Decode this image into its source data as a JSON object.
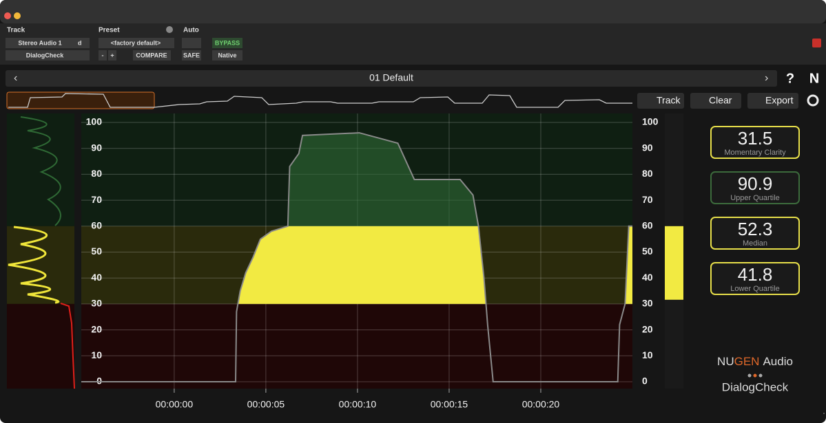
{
  "toolbar": {
    "track_label": "Track",
    "preset_label": "Preset",
    "auto_label": "Auto",
    "track_name": "Stereo Audio 1",
    "track_mode": "d",
    "preset_name": "<factory default>",
    "bypass": "BYPASS",
    "plugin_name": "DialogCheck",
    "minus": "-",
    "plus": "+",
    "compare": "COMPARE",
    "safe": "SAFE",
    "native": "Native"
  },
  "nav": {
    "preset": "01 Default",
    "help": "?",
    "logo": "N"
  },
  "buttons": {
    "track": "Track",
    "clear": "Clear",
    "export": "Export"
  },
  "readouts": [
    {
      "value": "31.5",
      "label": "Momentary Clarity",
      "color": "#e8e04a"
    },
    {
      "value": "90.9",
      "label": "Upper Quartile",
      "color": "#3c6b3c"
    },
    {
      "value": "52.3",
      "label": "Median",
      "color": "#e8e04a"
    },
    {
      "value": "41.8",
      "label": "Lower Quartile",
      "color": "#e8e04a"
    }
  ],
  "brand": {
    "nu": "NU",
    "gen": "GEN",
    "audio": "Audio",
    "product": "DialogCheck"
  },
  "chart_data": {
    "type": "line",
    "ylim": [
      0,
      100
    ],
    "yticks": [
      0,
      10,
      20,
      30,
      40,
      50,
      60,
      70,
      80,
      90,
      100
    ],
    "xlim": [
      -5.07,
      25
    ],
    "xticks": [
      {
        "value": 0,
        "label": "00:00:00"
      },
      {
        "value": 5,
        "label": "00:00:05"
      },
      {
        "value": 10,
        "label": "00:00:10"
      },
      {
        "value": 15,
        "label": "00:00:15"
      },
      {
        "value": 20,
        "label": "00:00:20"
      }
    ],
    "grid": true,
    "zones": [
      {
        "from": 60,
        "to": 100,
        "color": "#0f1f12"
      },
      {
        "from": 30,
        "to": 60,
        "color": "#2a2a0c"
      },
      {
        "from": 0,
        "to": 30,
        "color": "#1f0707"
      }
    ],
    "series": [
      {
        "color": "#8a8a8a",
        "x": [
          -5.07,
          3.35,
          3.4,
          3.6,
          3.9,
          4.3,
          4.7,
          5.3,
          6.2,
          6.3,
          6.8,
          7.0,
          10.1,
          12.2,
          13.1,
          15.6,
          16.3,
          16.6,
          16.9,
          17.1,
          17.4,
          24.2,
          24.3,
          24.6,
          24.8,
          25
        ],
        "values": [
          0,
          0,
          27,
          35,
          42,
          48,
          55,
          58,
          60,
          83,
          88,
          95,
          96,
          92,
          78,
          78,
          72,
          60,
          40,
          22,
          0,
          0,
          22,
          30,
          60,
          60
        ]
      }
    ]
  }
}
